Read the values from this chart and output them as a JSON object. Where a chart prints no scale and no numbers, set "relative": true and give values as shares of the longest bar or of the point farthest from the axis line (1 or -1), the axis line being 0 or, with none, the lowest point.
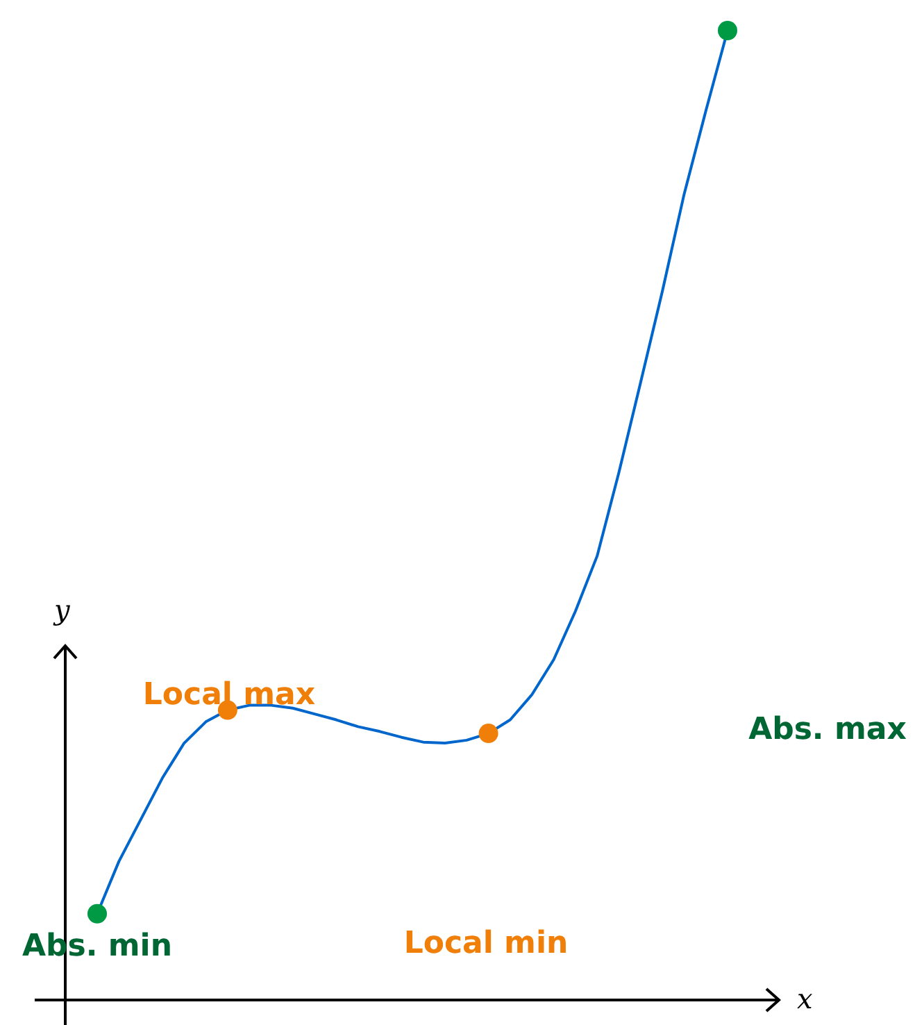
{
  "chart_data": {
    "type": "line",
    "relative": true,
    "xlabel": "x",
    "ylabel": "y",
    "legend": false,
    "grid": false,
    "categories": [
      null,
      null,
      null,
      null,
      null,
      null,
      null,
      null,
      null,
      null,
      null,
      null,
      null,
      null,
      null,
      null,
      null,
      null,
      null,
      null,
      null,
      null,
      null,
      null,
      null,
      null,
      null,
      null,
      null,
      null
    ],
    "series": [
      {
        "type": "line",
        "color": "#0066cc",
        "marker": "none",
        "values": [
          0.089,
          0.143,
          0.186,
          0.229,
          0.265,
          0.287,
          0.299,
          0.304,
          0.304,
          0.301,
          0.295,
          0.289,
          0.282,
          0.277,
          0.271,
          0.266,
          0.265,
          0.268,
          0.275,
          0.289,
          0.315,
          0.351,
          0.401,
          0.458,
          0.544,
          0.637,
          0.731,
          0.831,
          0.917,
          1
        ],
        "colors": [
          "#009944",
          null,
          null,
          null,
          null,
          null,
          "#f07f09",
          null,
          null,
          null,
          null,
          null,
          null,
          null,
          null,
          null,
          null,
          null,
          "#f07f09",
          null,
          null,
          null,
          null,
          null,
          null,
          null,
          null,
          null,
          null,
          "#009944"
        ]
      }
    ],
    "annotations": [
      "Abs. min",
      "Local max",
      "Local min",
      "Abs. max"
    ]
  }
}
